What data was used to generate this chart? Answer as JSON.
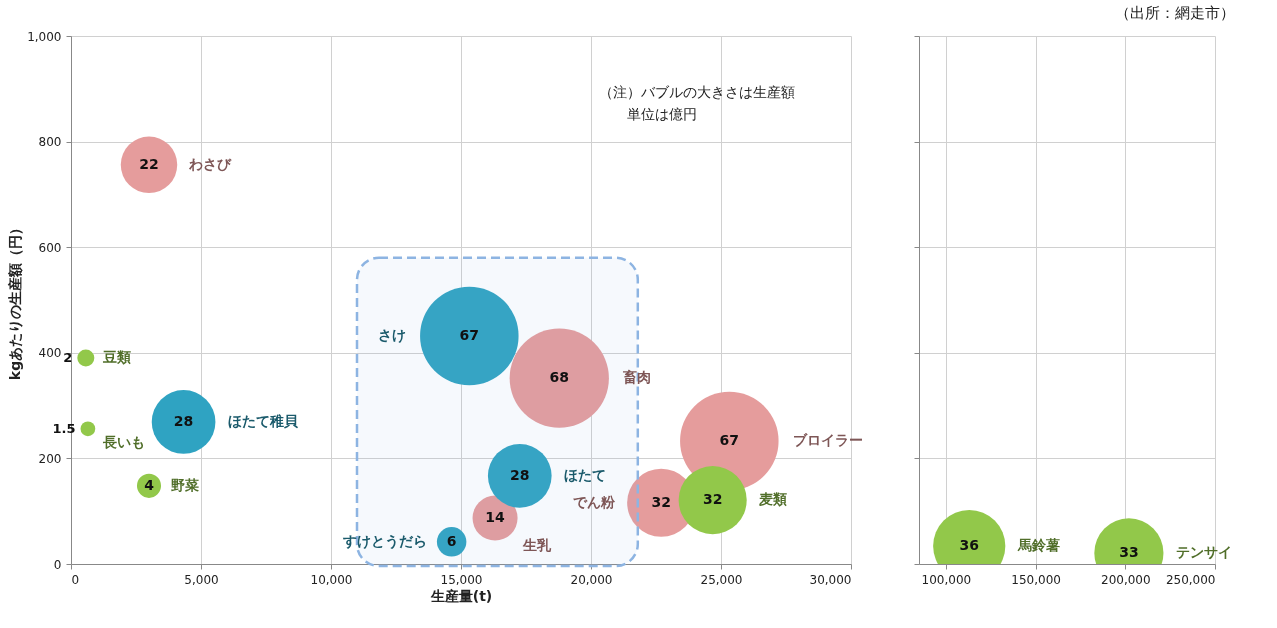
{
  "chart_data": [
    {
      "type": "bubble",
      "xlabel": "生産量(t)",
      "ylabel": "kgあたりの生産額（円）",
      "xlim": [
        0,
        30000
      ],
      "ylim": [
        0,
        1000
      ],
      "xticks": [
        0,
        {
          "value": 5000,
          "label": "5,000"
        },
        {
          "value": 10000,
          "label": "10,000"
        },
        {
          "value": 15000,
          "label": "15,000"
        },
        {
          "value": 20000,
          "label": "20,000"
        },
        {
          "value": 25000,
          "label": "25,000"
        },
        {
          "value": 30000,
          "label": "30,000"
        }
      ],
      "yticks": [
        0,
        200,
        400,
        600,
        800,
        {
          "value": 1000,
          "label": "1,000"
        }
      ],
      "grid": true,
      "series": [
        {
          "name": "わさび",
          "color": "#e59c9c",
          "x": [
            3000
          ],
          "values": [
            756
          ],
          "sizes": [
            22
          ],
          "value_labels": [
            "22"
          ]
        },
        {
          "name": "畜肉",
          "color": "#e59c9c",
          "x": [
            18780
          ],
          "values": [
            352
          ],
          "sizes": [
            68
          ],
          "value_labels": [
            "68"
          ]
        },
        {
          "name": "ブロイラー",
          "color": "#e59c9c",
          "x": [
            25320
          ],
          "values": [
            233
          ],
          "sizes": [
            67
          ],
          "value_labels": [
            "67"
          ]
        },
        {
          "name": "生乳",
          "color": "#e59c9c",
          "x": [
            16310
          ],
          "values": [
            87
          ],
          "sizes": [
            14
          ],
          "value_labels": [
            "14"
          ]
        },
        {
          "name": "でん粉",
          "color": "#e59c9c",
          "x": [
            22700
          ],
          "values": [
            116
          ],
          "sizes": [
            32
          ],
          "value_labels": [
            "32"
          ]
        },
        {
          "name": "ほたて稚貝",
          "color": "#2fa3c2",
          "x": [
            4330
          ],
          "values": [
            269
          ],
          "sizes": [
            28
          ],
          "value_labels": [
            "28"
          ]
        },
        {
          "name": "さけ",
          "color": "#2fa3c2",
          "x": [
            15320
          ],
          "values": [
            432
          ],
          "sizes": [
            67
          ],
          "value_labels": [
            "67"
          ]
        },
        {
          "name": "ほたて",
          "color": "#2fa3c2",
          "x": [
            17260
          ],
          "values": [
            167
          ],
          "sizes": [
            28
          ],
          "value_labels": [
            "28"
          ]
        },
        {
          "name": "すけとうだら",
          "color": "#2fa3c2",
          "x": [
            14640
          ],
          "values": [
            42
          ],
          "sizes": [
            6
          ],
          "value_labels": [
            "6"
          ]
        },
        {
          "name": "豆類",
          "color": "#92c84a",
          "x": [
            570
          ],
          "values": [
            390
          ],
          "sizes": [
            2
          ],
          "value_labels": [
            "2"
          ]
        },
        {
          "name": "長いも",
          "color": "#92c84a",
          "x": [
            650
          ],
          "values": [
            256
          ],
          "sizes": [
            1.5
          ],
          "value_labels": [
            "1.5"
          ]
        },
        {
          "name": "野菜",
          "color": "#92c84a",
          "x": [
            3000
          ],
          "values": [
            148
          ],
          "sizes": [
            4
          ],
          "value_labels": [
            "4"
          ]
        },
        {
          "name": "麦類",
          "color": "#92c84a",
          "x": [
            24680
          ],
          "values": [
            121
          ],
          "sizes": [
            32
          ],
          "value_labels": [
            "32"
          ]
        }
      ],
      "bands": [
        {
          "axis": "x",
          "from": 11000,
          "to": 21800,
          "color": "#8db4e2"
        }
      ],
      "annotations": [
        "（注）バブルの大きさは生産額",
        "単位は億円"
      ]
    },
    {
      "type": "bubble",
      "xlim": [
        85000,
        250000
      ],
      "ylim": [
        0,
        1000
      ],
      "xticks": [
        {
          "value": 100000,
          "label": "100,000"
        },
        {
          "value": 150000,
          "label": "150,000"
        },
        {
          "value": 200000,
          "label": "200,000"
        },
        {
          "value": 250000,
          "label": "250,000"
        }
      ],
      "yticks": [
        0,
        200,
        400,
        600,
        800,
        1000
      ],
      "grid": true,
      "tick_labels": "x",
      "series": [
        {
          "name": "馬鈴薯",
          "color": "#92c84a",
          "x": [
            113000
          ],
          "values": [
            34
          ],
          "sizes": [
            36
          ],
          "value_labels": [
            "36"
          ]
        },
        {
          "name": "テンサイ",
          "color": "#92c84a",
          "x": [
            202000
          ],
          "values": [
            21
          ],
          "sizes": [
            33
          ],
          "value_labels": [
            "33"
          ]
        }
      ],
      "annotations": [
        "（出所：網走市）"
      ]
    }
  ]
}
